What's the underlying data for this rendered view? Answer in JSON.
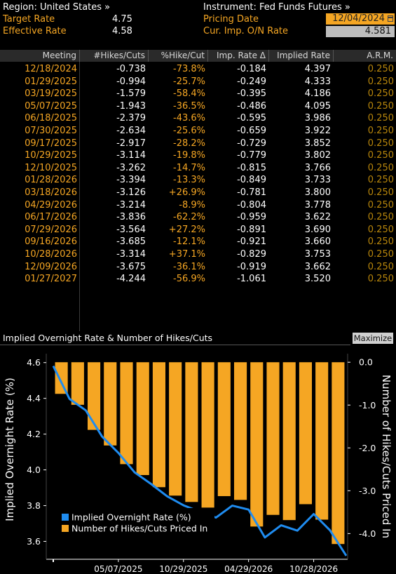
{
  "header": {
    "region_label": "Region: United States »",
    "instrument_label": "Instrument: Fed Funds Futures »",
    "target_rate_label": "Target Rate",
    "target_rate_value": "4.75",
    "effective_rate_label": "Effective Rate",
    "effective_rate_value": "4.58",
    "pricing_date_label": "Pricing Date",
    "pricing_date_value": "12/04/2024",
    "cur_imp_label": "Cur. Imp. O/N Rate",
    "cur_imp_value": "4.581"
  },
  "table": {
    "columns": [
      "Meeting",
      "#Hikes/Cuts",
      "%Hike/Cut",
      "Imp. Rate Δ",
      "Implied Rate",
      "A.R.M."
    ],
    "rows": [
      {
        "meeting": "12/18/2024",
        "hikes": "-0.738",
        "pct": "-73.8%",
        "delta": "-0.184",
        "implied": "4.397",
        "arm": "0.250"
      },
      {
        "meeting": "01/29/2025",
        "hikes": "-0.994",
        "pct": "-25.7%",
        "delta": "-0.249",
        "implied": "4.333",
        "arm": "0.250"
      },
      {
        "meeting": "03/19/2025",
        "hikes": "-1.579",
        "pct": "-58.4%",
        "delta": "-0.395",
        "implied": "4.186",
        "arm": "0.250"
      },
      {
        "meeting": "05/07/2025",
        "hikes": "-1.943",
        "pct": "-36.5%",
        "delta": "-0.486",
        "implied": "4.095",
        "arm": "0.250"
      },
      {
        "meeting": "06/18/2025",
        "hikes": "-2.379",
        "pct": "-43.6%",
        "delta": "-0.595",
        "implied": "3.986",
        "arm": "0.250"
      },
      {
        "meeting": "07/30/2025",
        "hikes": "-2.634",
        "pct": "-25.6%",
        "delta": "-0.659",
        "implied": "3.922",
        "arm": "0.250"
      },
      {
        "meeting": "09/17/2025",
        "hikes": "-2.917",
        "pct": "-28.2%",
        "delta": "-0.729",
        "implied": "3.852",
        "arm": "0.250"
      },
      {
        "meeting": "10/29/2025",
        "hikes": "-3.114",
        "pct": "-19.8%",
        "delta": "-0.779",
        "implied": "3.802",
        "arm": "0.250"
      },
      {
        "meeting": "12/10/2025",
        "hikes": "-3.262",
        "pct": "-14.7%",
        "delta": "-0.815",
        "implied": "3.766",
        "arm": "0.250"
      },
      {
        "meeting": "01/28/2026",
        "hikes": "-3.394",
        "pct": "-13.3%",
        "delta": "-0.849",
        "implied": "3.733",
        "arm": "0.250"
      },
      {
        "meeting": "03/18/2026",
        "hikes": "-3.126",
        "pct": "+26.9%",
        "delta": "-0.781",
        "implied": "3.800",
        "arm": "0.250"
      },
      {
        "meeting": "04/29/2026",
        "hikes": "-3.214",
        "pct": "-8.9%",
        "delta": "-0.804",
        "implied": "3.778",
        "arm": "0.250"
      },
      {
        "meeting": "06/17/2026",
        "hikes": "-3.836",
        "pct": "-62.2%",
        "delta": "-0.959",
        "implied": "3.622",
        "arm": "0.250"
      },
      {
        "meeting": "07/29/2026",
        "hikes": "-3.564",
        "pct": "+27.2%",
        "delta": "-0.891",
        "implied": "3.690",
        "arm": "0.250"
      },
      {
        "meeting": "09/16/2026",
        "hikes": "-3.685",
        "pct": "-12.1%",
        "delta": "-0.921",
        "implied": "3.660",
        "arm": "0.250"
      },
      {
        "meeting": "10/28/2026",
        "hikes": "-3.314",
        "pct": "+37.1%",
        "delta": "-0.829",
        "implied": "3.753",
        "arm": "0.250"
      },
      {
        "meeting": "12/09/2026",
        "hikes": "-3.675",
        "pct": "-36.1%",
        "delta": "-0.919",
        "implied": "3.662",
        "arm": "0.250"
      },
      {
        "meeting": "01/27/2027",
        "hikes": "-4.244",
        "pct": "-56.9%",
        "delta": "-1.061",
        "implied": "3.520",
        "arm": "0.250"
      }
    ]
  },
  "chart_panel": {
    "title": "Implied Overnight Rate & Number of Hikes/Cuts",
    "maximize_label": "Maximize"
  },
  "colors": {
    "orange": "#f5a623",
    "blue": "#1f8cf0",
    "date_box": "#f5a623"
  },
  "chart_data": {
    "type": "bar+line",
    "ylabel_left": "Implied Overnight Rate (%)",
    "ylabel_right": "Number of Hikes/Cuts Priced In",
    "ylim_left": [
      3.5,
      4.65
    ],
    "ylim_right": [
      -4.6,
      0.2
    ],
    "left_ticks": [
      "4.6",
      "4.4",
      "4.2",
      "4.0",
      "3.8",
      "3.6"
    ],
    "right_ticks": [
      "0.0",
      "-1.0",
      "-2.0",
      "-3.0",
      "-4.0"
    ],
    "x_tick_labels": [
      "05/07/2025",
      "10/29/2025",
      "04/29/2026",
      "10/28/2026"
    ],
    "x_tick_indices": [
      4,
      8,
      12,
      16
    ],
    "legend_position": "bottom-left",
    "series": [
      {
        "name": "Implied Overnight Rate (%)",
        "kind": "line",
        "values": [
          4.581,
          4.397,
          4.333,
          4.186,
          4.095,
          3.986,
          3.922,
          3.852,
          3.802,
          3.766,
          3.733,
          3.8,
          3.778,
          3.622,
          3.69,
          3.66,
          3.753,
          3.662,
          3.52
        ]
      },
      {
        "name": "Number of Hikes/Cuts Priced In",
        "kind": "bar",
        "values": [
          -0.738,
          -0.994,
          -1.579,
          -1.943,
          -2.379,
          -2.634,
          -2.917,
          -3.114,
          -3.262,
          -3.394,
          -3.126,
          -3.214,
          -3.836,
          -3.564,
          -3.685,
          -3.314,
          -3.675,
          -4.244
        ]
      }
    ]
  }
}
